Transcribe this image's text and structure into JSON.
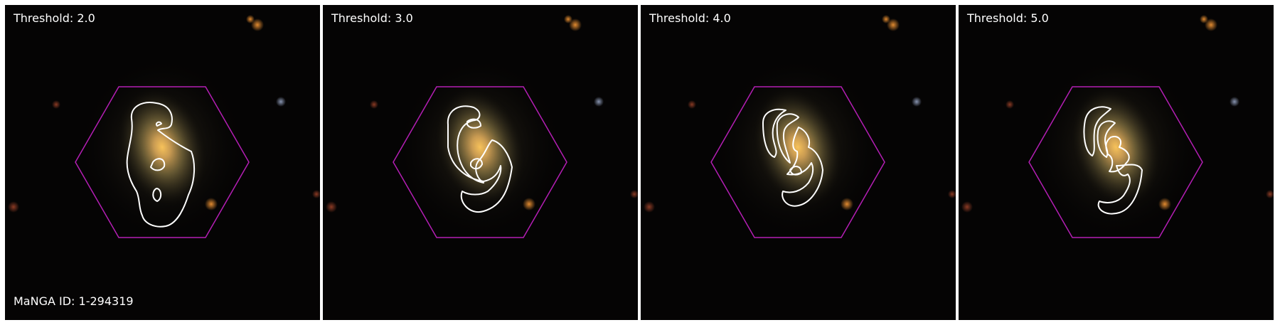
{
  "panels": [
    {
      "threshold_label": "Threshold: 2.0"
    },
    {
      "threshold_label": "Threshold: 3.0"
    },
    {
      "threshold_label": "Threshold: 4.0"
    },
    {
      "threshold_label": "Threshold: 5.0"
    }
  ],
  "galaxy_id_label": "MaNGA ID: 1-294319",
  "colors": {
    "hexagon": "#b41eb4",
    "contour": "#ffffff",
    "label_text": "#ffffff",
    "galaxy_core": "#f0b040"
  }
}
